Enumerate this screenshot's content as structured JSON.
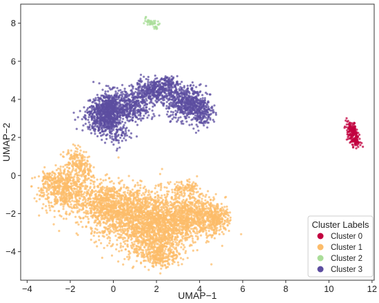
{
  "chart_data": {
    "type": "scatter",
    "xlabel": "UMAP−1",
    "ylabel": "UMAP−2",
    "xlim": [
      -4.3,
      12.1
    ],
    "ylim": [
      -5.5,
      9.0
    ],
    "x_ticks": [
      -4,
      -2,
      0,
      2,
      4,
      6,
      8,
      10,
      12
    ],
    "y_ticks": [
      -4,
      -2,
      0,
      2,
      4,
      6,
      8
    ],
    "x_tick_labels": [
      "−4",
      "−2",
      "0",
      "2",
      "4",
      "6",
      "8",
      "10",
      "12"
    ],
    "y_tick_labels": [
      "−4",
      "−2",
      "0",
      "2",
      "4",
      "6",
      "8"
    ],
    "grid": false,
    "legend": {
      "title": "Cluster Labels",
      "placement": "bottom-right"
    },
    "series": [
      {
        "name": "Cluster 0",
        "color": "#c2003f",
        "region": {
          "x_range": [
            10.8,
            11.5
          ],
          "y_range": [
            1.5,
            2.9
          ]
        },
        "center": [
          11.1,
          2.3
        ],
        "approx_points": 200
      },
      {
        "name": "Cluster 1",
        "color": "#fcbc6a",
        "region": {
          "x_range": [
            -3.5,
            5.4
          ],
          "y_range": [
            -4.9,
            1.5
          ]
        },
        "center": [
          1.2,
          -2.0
        ],
        "approx_points": 6000
      },
      {
        "name": "Cluster 2",
        "color": "#aadd99",
        "region": {
          "x_range": [
            1.5,
            2.1
          ],
          "y_range": [
            7.7,
            8.3
          ]
        },
        "center": [
          1.8,
          8.0
        ],
        "approx_points": 40
      },
      {
        "name": "Cluster 3",
        "color": "#5c4da0",
        "region": {
          "x_range": [
            -1.3,
            4.5
          ],
          "y_range": [
            1.0,
            5.5
          ]
        },
        "center": [
          1.7,
          3.5
        ],
        "approx_points": 2500
      }
    ]
  }
}
